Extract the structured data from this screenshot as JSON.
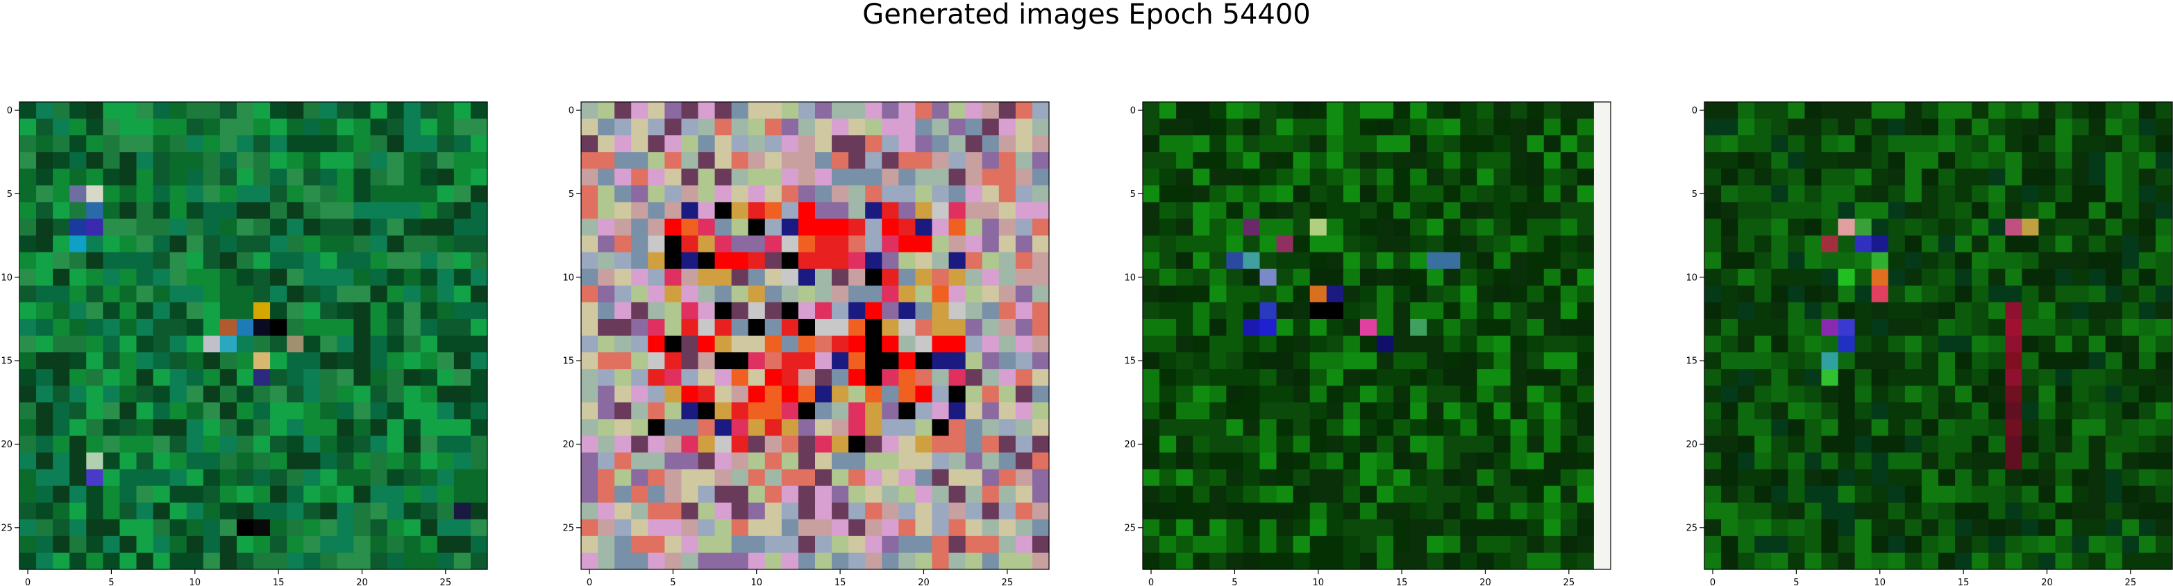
{
  "figure": {
    "title": "Generated images Epoch 54400"
  },
  "chart_data": [
    {
      "type": "heatmap",
      "name": "panel-1",
      "grid_size": 28,
      "xlim": [
        -0.5,
        27.5
      ],
      "ylim": [
        27.5,
        -0.5
      ],
      "x_ticks": [
        0,
        5,
        10,
        15,
        20,
        25
      ],
      "y_ticks": [
        0,
        5,
        10,
        15,
        20,
        25
      ],
      "palette": [
        "#0b6b2a",
        "#0f8a35",
        "#086a40",
        "#13a347",
        "#0c5a2e",
        "#1c7a3c",
        "#064a24",
        "#2a8f4a",
        "#0a3d1c",
        "#0d7f55"
      ],
      "accent_cells": [
        {
          "row": 5,
          "col": 4,
          "color": "#d8d8c8"
        },
        {
          "row": 5,
          "col": 3,
          "color": "#6e6ea0"
        },
        {
          "row": 6,
          "col": 4,
          "color": "#2a6aa8"
        },
        {
          "row": 7,
          "col": 4,
          "color": "#3b2ab0"
        },
        {
          "row": 7,
          "col": 3,
          "color": "#1a3aa0"
        },
        {
          "row": 8,
          "col": 3,
          "color": "#0fa0c8"
        },
        {
          "row": 12,
          "col": 14,
          "color": "#d4a800"
        },
        {
          "row": 13,
          "col": 13,
          "color": "#1f7ab8"
        },
        {
          "row": 13,
          "col": 12,
          "color": "#b05a30"
        },
        {
          "row": 13,
          "col": 15,
          "color": "#000000"
        },
        {
          "row": 13,
          "col": 14,
          "color": "#0a0a20"
        },
        {
          "row": 14,
          "col": 11,
          "color": "#c0c0c8"
        },
        {
          "row": 14,
          "col": 12,
          "color": "#2aa8c0"
        },
        {
          "row": 14,
          "col": 16,
          "color": "#a09070"
        },
        {
          "row": 15,
          "col": 14,
          "color": "#d8b870"
        },
        {
          "row": 16,
          "col": 14,
          "color": "#2a2a80"
        },
        {
          "row": 21,
          "col": 4,
          "color": "#b0d0b0"
        },
        {
          "row": 22,
          "col": 4,
          "color": "#4a3ac8"
        },
        {
          "row": 25,
          "col": 13,
          "color": "#000000"
        },
        {
          "row": 25,
          "col": 14,
          "color": "#0a0a0a"
        },
        {
          "row": 24,
          "col": 26,
          "color": "#1a1a40"
        }
      ]
    },
    {
      "type": "heatmap",
      "name": "panel-2",
      "grid_size": 28,
      "xlim": [
        -0.5,
        27.5
      ],
      "ylim": [
        27.5,
        -0.5
      ],
      "x_ticks": [
        0,
        5,
        10,
        15,
        20,
        25
      ],
      "y_ticks": [
        0,
        5,
        10,
        15,
        20,
        25
      ],
      "palette": [
        "#c8a0a0",
        "#9aa8c0",
        "#b0c890",
        "#e07060",
        "#8a6aa0",
        "#d0c8a0",
        "#a0b8a8",
        "#6a3a5a",
        "#d8a0d0",
        "#7890a8"
      ],
      "center_palette": [
        "#ff0000",
        "#e82020",
        "#f06020",
        "#d0a040",
        "#c8c8c8",
        "#1a1a80",
        "#000000",
        "#e03060"
      ],
      "center_region": {
        "row_start": 6,
        "row_end": 20,
        "col_start": 4,
        "col_end": 22
      }
    },
    {
      "type": "heatmap",
      "name": "panel-3",
      "grid_size": 28,
      "xlim": [
        -0.5,
        27.5
      ],
      "ylim": [
        27.5,
        -0.5
      ],
      "x_ticks": [
        0,
        5,
        10,
        15,
        20,
        25
      ],
      "y_ticks": [
        0,
        5,
        10,
        15,
        20,
        25
      ],
      "palette": [
        "#0a5a0a",
        "#0e7a0e",
        "#064006",
        "#0a300a",
        "#108c10",
        "#043004",
        "#0c4a0c",
        "#072a07"
      ],
      "right_column_color": "#f4f4f0",
      "accent_cells": [
        {
          "row": 7,
          "col": 10,
          "color": "#b0d080"
        },
        {
          "row": 7,
          "col": 6,
          "color": "#6a2a6a"
        },
        {
          "row": 8,
          "col": 8,
          "color": "#903060"
        },
        {
          "row": 9,
          "col": 5,
          "color": "#2a4aa0"
        },
        {
          "row": 9,
          "col": 6,
          "color": "#40a0a0"
        },
        {
          "row": 9,
          "col": 18,
          "color": "#3a70a0"
        },
        {
          "row": 9,
          "col": 17,
          "color": "#3a70a0"
        },
        {
          "row": 10,
          "col": 7,
          "color": "#7a8ac8"
        },
        {
          "row": 11,
          "col": 10,
          "color": "#d87020"
        },
        {
          "row": 11,
          "col": 11,
          "color": "#1a1a80"
        },
        {
          "row": 12,
          "col": 7,
          "color": "#2a3ac0"
        },
        {
          "row": 12,
          "col": 10,
          "color": "#000000"
        },
        {
          "row": 12,
          "col": 11,
          "color": "#000000"
        },
        {
          "row": 13,
          "col": 6,
          "color": "#1a1ab0"
        },
        {
          "row": 13,
          "col": 7,
          "color": "#2020d0"
        },
        {
          "row": 13,
          "col": 13,
          "color": "#e040a0"
        },
        {
          "row": 14,
          "col": 14,
          "color": "#10106a"
        },
        {
          "row": 13,
          "col": 16,
          "color": "#40a060"
        }
      ]
    },
    {
      "type": "heatmap",
      "name": "panel-4",
      "grid_size": 28,
      "xlim": [
        -0.5,
        27.5
      ],
      "ylim": [
        27.5,
        -0.5
      ],
      "x_ticks": [
        0,
        5,
        10,
        15,
        20,
        25
      ],
      "y_ticks": [
        0,
        5,
        10,
        15,
        20,
        25
      ],
      "palette": [
        "#0a4a0a",
        "#0e6a0e",
        "#083808",
        "#0c5a0c",
        "#062a06",
        "#107a10",
        "#0a300a",
        "#043a1a"
      ],
      "accent_cells": [
        {
          "row": 7,
          "col": 8,
          "color": "#e0a0a0"
        },
        {
          "row": 7,
          "col": 9,
          "color": "#3aa03a"
        },
        {
          "row": 7,
          "col": 18,
          "color": "#c05080"
        },
        {
          "row": 7,
          "col": 19,
          "color": "#c0a040"
        },
        {
          "row": 8,
          "col": 7,
          "color": "#a03040"
        },
        {
          "row": 8,
          "col": 9,
          "color": "#3030c0"
        },
        {
          "row": 8,
          "col": 10,
          "color": "#1a1a90"
        },
        {
          "row": 9,
          "col": 10,
          "color": "#30b030"
        },
        {
          "row": 10,
          "col": 8,
          "color": "#20c020"
        },
        {
          "row": 10,
          "col": 10,
          "color": "#e07020"
        },
        {
          "row": 11,
          "col": 10,
          "color": "#e04060"
        },
        {
          "row": 13,
          "col": 8,
          "color": "#3a3ad0"
        },
        {
          "row": 13,
          "col": 7,
          "color": "#8a2ab0"
        },
        {
          "row": 14,
          "col": 8,
          "color": "#2030c0"
        },
        {
          "row": 15,
          "col": 7,
          "color": "#30a0a0"
        },
        {
          "row": 16,
          "col": 7,
          "color": "#30c030"
        },
        {
          "row": 12,
          "col": 18,
          "color": "#901030"
        },
        {
          "row": 13,
          "col": 18,
          "color": "#a01030"
        },
        {
          "row": 14,
          "col": 18,
          "color": "#901030"
        },
        {
          "row": 15,
          "col": 18,
          "color": "#801020"
        },
        {
          "row": 16,
          "col": 18,
          "color": "#901030"
        },
        {
          "row": 17,
          "col": 18,
          "color": "#701020"
        },
        {
          "row": 18,
          "col": 18,
          "color": "#601020"
        },
        {
          "row": 19,
          "col": 18,
          "color": "#701020"
        },
        {
          "row": 20,
          "col": 18,
          "color": "#601020"
        },
        {
          "row": 21,
          "col": 18,
          "color": "#601020"
        }
      ]
    }
  ]
}
